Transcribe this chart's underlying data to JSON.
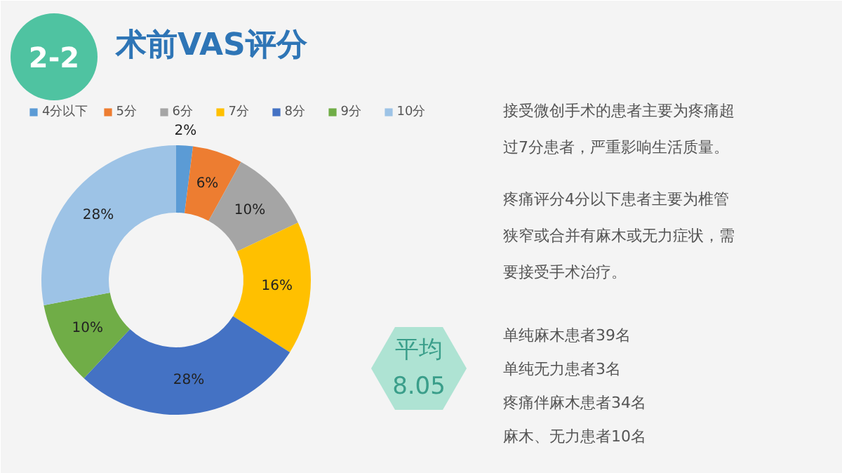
{
  "chart_data": {
    "type": "donut",
    "title": "术前VAS评分",
    "categories": [
      "4分以下",
      "5分",
      "6分",
      "7分",
      "8分",
      "9分",
      "10分"
    ],
    "values": [
      2,
      6,
      10,
      16,
      28,
      10,
      28
    ],
    "colors": [
      "#5b9bd5",
      "#ed7d31",
      "#a5a5a5",
      "#ffc000",
      "#4472c4",
      "#70ad47",
      "#9dc3e6"
    ],
    "value_labels": [
      "2%",
      "6%",
      "10%",
      "16%",
      "28%",
      "10%",
      "28%"
    ],
    "legend": "top",
    "annotations": [
      "2-2",
      "接受微创手术的患者主要为疼痛超过7分患者，严重影响生活质量。",
      "疼痛评分4分以下患者主要为椎管狭窄或合并有麻木或无力症状，需要接受手术治疗。",
      "单纯麻木患者39名",
      "单纯无力患者3名",
      "疼痛伴麻木患者34名",
      "麻木、无力患者10名",
      "平均\n8.05"
    ]
  }
}
